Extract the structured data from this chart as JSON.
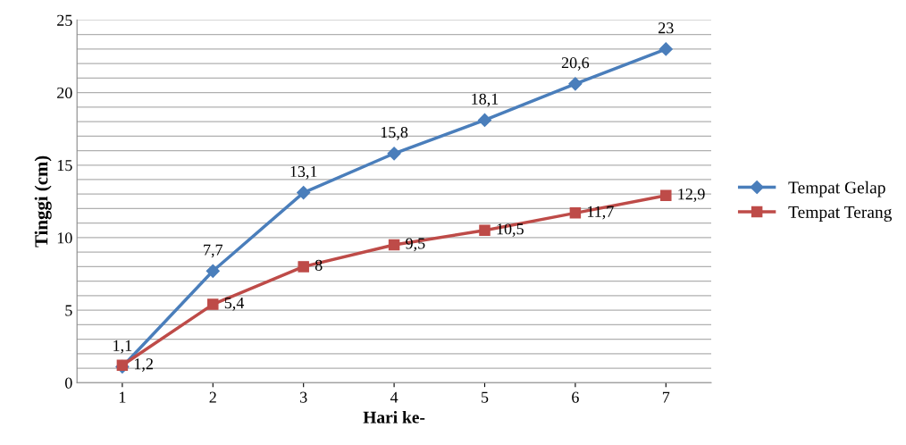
{
  "chart_data": {
    "type": "line",
    "xlabel": "Hari ke-",
    "ylabel": "Tinggi (cm)",
    "categories": [
      "1",
      "2",
      "3",
      "4",
      "5",
      "6",
      "7"
    ],
    "series": [
      {
        "name": "Tempat Gelap",
        "color": "#4a7ebb",
        "marker": "diamond",
        "values": [
          1.1,
          7.7,
          13.1,
          15.8,
          18.1,
          20.6,
          23
        ],
        "value_labels": [
          "1,1",
          "7,7",
          "13,1",
          "15,8",
          "18,1",
          "20,6",
          "23"
        ]
      },
      {
        "name": "Tempat Terang",
        "color": "#be4b48",
        "marker": "square",
        "values": [
          1.2,
          5.4,
          8,
          9.5,
          10.5,
          11.7,
          12.9
        ],
        "value_labels": [
          "1,2",
          "5,4",
          "8",
          "9,5",
          "10,5",
          "11,7",
          "12,9"
        ]
      }
    ],
    "ylim": [
      0,
      25
    ],
    "yticks": [
      0,
      {
        "value": 1,
        "label": null
      },
      {
        "value": 2,
        "label": null
      },
      {
        "value": 3,
        "label": null
      },
      {
        "value": 4,
        "label": null
      },
      5,
      {
        "value": 6,
        "label": null
      },
      {
        "value": 7,
        "label": null
      },
      {
        "value": 8,
        "label": null
      },
      {
        "value": 9,
        "label": null
      },
      10,
      {
        "value": 11,
        "label": null
      },
      {
        "value": 12,
        "label": null
      },
      {
        "value": 13,
        "label": null
      },
      {
        "value": 14,
        "label": null
      },
      15,
      {
        "value": 16,
        "label": null
      },
      {
        "value": 17,
        "label": null
      },
      {
        "value": 18,
        "label": null
      },
      {
        "value": 19,
        "label": null
      },
      20,
      {
        "value": 21,
        "label": null
      },
      {
        "value": 22,
        "label": null
      },
      {
        "value": 23,
        "label": null
      },
      {
        "value": 24,
        "label": null
      },
      25
    ],
    "grid": "y",
    "legend": "right",
    "line_style": "solid"
  }
}
